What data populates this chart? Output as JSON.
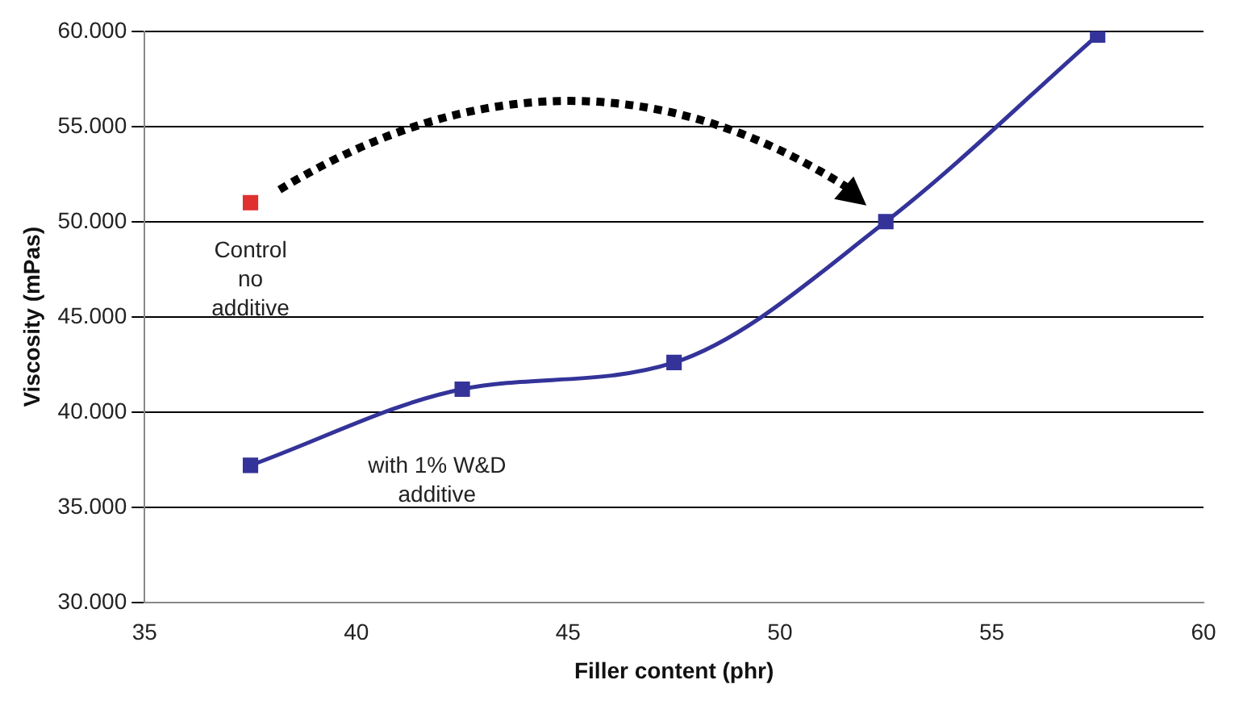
{
  "chart_data": {
    "type": "line",
    "xlabel": "Filler content (phr)",
    "ylabel": "Viscosity (mPas)",
    "xlim": [
      35,
      60
    ],
    "xticks": [
      35,
      40,
      45,
      50,
      55,
      60
    ],
    "ylim": [
      30000,
      60000
    ],
    "yticks": [
      {
        "value": 30000,
        "label": "30.000"
      },
      {
        "value": 35000,
        "label": "35.000"
      },
      {
        "value": 40000,
        "label": "40.000"
      },
      {
        "value": 45000,
        "label": "45.000"
      },
      {
        "value": 50000,
        "label": "50.000"
      },
      {
        "value": 55000,
        "label": "55.000"
      },
      {
        "value": 60000,
        "label": "60.000"
      }
    ],
    "grid": "y",
    "legend": false,
    "marker": "square",
    "series": [
      {
        "name": "with 1% W&D additive",
        "color": "#333399",
        "x": [
          37.5,
          42.5,
          47.5,
          52.5,
          57.5
        ],
        "values": [
          37200,
          41200,
          42600,
          50000,
          59800
        ]
      },
      {
        "name": "Control no additive",
        "type": "scatter",
        "color": "#e03030",
        "x": [
          37.5
        ],
        "values": [
          51000
        ]
      }
    ]
  }
}
